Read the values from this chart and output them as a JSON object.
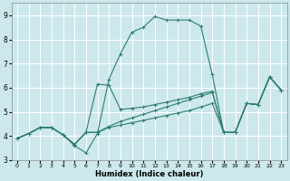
{
  "xlabel": "Humidex (Indice chaleur)",
  "xlim": [
    -0.5,
    23.5
  ],
  "ylim": [
    3,
    9.5
  ],
  "yticks": [
    3,
    4,
    5,
    6,
    7,
    8,
    9
  ],
  "xticks": [
    0,
    1,
    2,
    3,
    4,
    5,
    6,
    7,
    8,
    9,
    10,
    11,
    12,
    13,
    14,
    15,
    16,
    17,
    18,
    19,
    20,
    21,
    22,
    23
  ],
  "bg_color": "#cce8ec",
  "grid_color": "#ffffff",
  "line_color": "#2e7d6e",
  "lines": [
    {
      "x": [
        0,
        1,
        2,
        3,
        4,
        5,
        6,
        7,
        8,
        9,
        10,
        11,
        12,
        13,
        14,
        15,
        16,
        17,
        18,
        19,
        20,
        21,
        22,
        23
      ],
      "y": [
        3.9,
        4.1,
        4.35,
        4.35,
        4.05,
        3.6,
        3.3,
        4.1,
        6.35,
        7.4,
        8.3,
        8.5,
        8.95,
        8.8,
        8.8,
        8.8,
        8.55,
        6.55,
        4.15,
        4.15,
        5.35,
        5.3,
        6.45,
        5.9
      ]
    },
    {
      "x": [
        0,
        1,
        2,
        3,
        4,
        5,
        6,
        7,
        8,
        9,
        10,
        11,
        12,
        13,
        14,
        15,
        16,
        17,
        18,
        19,
        20,
        21,
        22,
        23
      ],
      "y": [
        3.9,
        4.1,
        4.35,
        4.35,
        4.05,
        3.65,
        4.15,
        6.15,
        6.1,
        5.1,
        5.15,
        5.2,
        5.3,
        5.4,
        5.5,
        5.6,
        5.75,
        5.85,
        4.15,
        4.15,
        5.35,
        5.3,
        6.45,
        5.9
      ]
    },
    {
      "x": [
        0,
        1,
        2,
        3,
        4,
        5,
        6,
        7,
        8,
        9,
        10,
        11,
        12,
        13,
        14,
        15,
        16,
        17,
        18,
        19,
        20,
        21,
        22,
        23
      ],
      "y": [
        3.9,
        4.1,
        4.35,
        4.35,
        4.05,
        3.65,
        4.15,
        4.15,
        4.4,
        4.6,
        4.75,
        4.9,
        5.05,
        5.2,
        5.35,
        5.5,
        5.65,
        5.8,
        4.15,
        4.15,
        5.35,
        5.3,
        6.45,
        5.9
      ]
    },
    {
      "x": [
        0,
        1,
        2,
        3,
        4,
        5,
        6,
        7,
        8,
        9,
        10,
        11,
        12,
        13,
        14,
        15,
        16,
        17,
        18,
        19,
        20,
        21,
        22,
        23
      ],
      "y": [
        3.9,
        4.1,
        4.35,
        4.35,
        4.05,
        3.65,
        4.15,
        4.15,
        4.35,
        4.45,
        4.55,
        4.65,
        4.75,
        4.85,
        4.95,
        5.05,
        5.2,
        5.35,
        4.15,
        4.15,
        5.35,
        5.3,
        6.45,
        5.9
      ]
    }
  ]
}
